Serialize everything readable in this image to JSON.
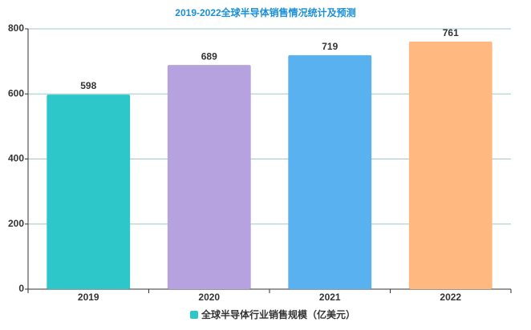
{
  "chart_data": {
    "type": "bar",
    "title": "2019-2022全球半导体销售情况统计及预测",
    "categories": [
      "2019",
      "2020",
      "2021",
      "2022"
    ],
    "series": [
      {
        "name": "全球半导体行业销售规模（亿美元）",
        "color": "#2ec7c9",
        "values": [
          598,
          689,
          719,
          761
        ]
      }
    ],
    "bar_colors": [
      "#2ec7c9",
      "#b6a2de",
      "#5ab1ef",
      "#ffb980"
    ],
    "ylim": [
      0,
      800
    ],
    "yticks": [
      0,
      200,
      400,
      600,
      800
    ],
    "grid": true,
    "legend": "bottom"
  }
}
